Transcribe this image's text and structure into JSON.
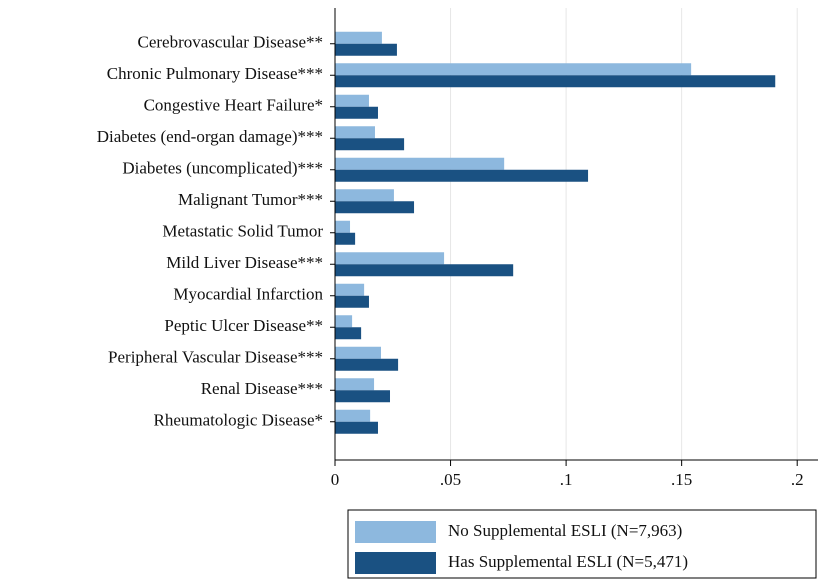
{
  "chart_data": {
    "type": "hbar",
    "categories": [
      "Cerebrovascular Disease**",
      "Chronic Pulmonary Disease***",
      "Congestive Heart Failure*",
      "Diabetes (end-organ damage)***",
      "Diabetes (uncomplicated)***",
      "Malignant Tumor***",
      "Metastatic Solid Tumor",
      "Mild Liver Disease***",
      "Myocardial Infarction",
      "Peptic Ulcer Disease**",
      "Peripheral Vascular Disease***",
      "Renal Disease***",
      "Rheumatologic Disease*"
    ],
    "series": [
      {
        "name": "No Supplemental ESLI (N=7,963)",
        "color": "#8db8de",
        "values": [
          0.0203,
          0.1541,
          0.0147,
          0.0173,
          0.0732,
          0.0255,
          0.0065,
          0.0472,
          0.0126,
          0.0074,
          0.0199,
          0.0169,
          0.0152
        ]
      },
      {
        "name": "Has Supplemental ESLI (N=5,471)",
        "color": "#1a5182",
        "values": [
          0.0268,
          0.1905,
          0.0186,
          0.0299,
          0.1095,
          0.0342,
          0.0087,
          0.0771,
          0.0147,
          0.0113,
          0.0273,
          0.0238,
          0.0186
        ]
      }
    ],
    "xlim": [
      0,
      0.209
    ],
    "xticks": [
      0,
      {
        "value": 0.05,
        "label": ".05"
      },
      {
        "value": 0.1,
        "label": ".1"
      },
      {
        "value": 0.15,
        "label": ".15"
      },
      {
        "value": 0.2,
        "label": ".2"
      }
    ],
    "grid": true,
    "legend": "bottom"
  }
}
